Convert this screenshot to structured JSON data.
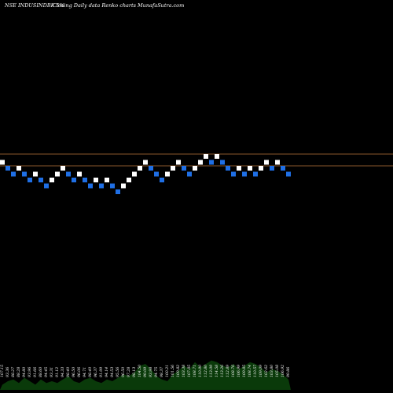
{
  "header": {
    "title": "NSE INDUSINDBK 5%",
    "subtitle": "Closing Daily data Renko charts MunafaSutra.com"
  },
  "chart_data": {
    "type": "renko",
    "brick_size_pct": 5,
    "colors": {
      "up": "#ffffff",
      "down": "#1f6fe5",
      "reference_line": "#b8743a",
      "volume": "#0a3a0a",
      "background": "#000000"
    },
    "reference_lines": [
      1,
      3
    ],
    "bricks": [
      {
        "level": 1,
        "dir": "up"
      },
      {
        "level": 0,
        "dir": "down"
      },
      {
        "level": -1,
        "dir": "down"
      },
      {
        "level": 0,
        "dir": "up"
      },
      {
        "level": -1,
        "dir": "down"
      },
      {
        "level": -2,
        "dir": "down"
      },
      {
        "level": -1,
        "dir": "up"
      },
      {
        "level": -2,
        "dir": "down"
      },
      {
        "level": -3,
        "dir": "down"
      },
      {
        "level": -2,
        "dir": "up"
      },
      {
        "level": -1,
        "dir": "up"
      },
      {
        "level": 0,
        "dir": "up"
      },
      {
        "level": -1,
        "dir": "down"
      },
      {
        "level": -2,
        "dir": "down"
      },
      {
        "level": -1,
        "dir": "up"
      },
      {
        "level": -2,
        "dir": "down"
      },
      {
        "level": -3,
        "dir": "down"
      },
      {
        "level": -2,
        "dir": "up"
      },
      {
        "level": -3,
        "dir": "down"
      },
      {
        "level": -2,
        "dir": "up"
      },
      {
        "level": -3,
        "dir": "down"
      },
      {
        "level": -4,
        "dir": "down"
      },
      {
        "level": -3,
        "dir": "up"
      },
      {
        "level": -2,
        "dir": "up"
      },
      {
        "level": -1,
        "dir": "up"
      },
      {
        "level": 0,
        "dir": "up"
      },
      {
        "level": 1,
        "dir": "up"
      },
      {
        "level": 0,
        "dir": "down"
      },
      {
        "level": -1,
        "dir": "down"
      },
      {
        "level": -2,
        "dir": "down"
      },
      {
        "level": -1,
        "dir": "up"
      },
      {
        "level": 0,
        "dir": "up"
      },
      {
        "level": 1,
        "dir": "up"
      },
      {
        "level": 0,
        "dir": "down"
      },
      {
        "level": -1,
        "dir": "down"
      },
      {
        "level": 0,
        "dir": "up"
      },
      {
        "level": 1,
        "dir": "up"
      },
      {
        "level": 2,
        "dir": "up"
      },
      {
        "level": 1,
        "dir": "down"
      },
      {
        "level": 2,
        "dir": "up"
      },
      {
        "level": 1,
        "dir": "down"
      },
      {
        "level": 0,
        "dir": "down"
      },
      {
        "level": -1,
        "dir": "down"
      },
      {
        "level": 0,
        "dir": "up"
      },
      {
        "level": -1,
        "dir": "down"
      },
      {
        "level": 0,
        "dir": "up"
      },
      {
        "level": -1,
        "dir": "down"
      },
      {
        "level": 0,
        "dir": "up"
      },
      {
        "level": 1,
        "dir": "up"
      },
      {
        "level": 0,
        "dir": "down"
      },
      {
        "level": 1,
        "dir": "up"
      },
      {
        "level": 0,
        "dir": "down"
      },
      {
        "level": -1,
        "dir": "down"
      }
    ],
    "x_labels": [
      "107.15",
      "93.36",
      "88.27",
      "88.28",
      "94.80",
      "93.96",
      "91.66",
      "88.60",
      "94.45",
      "93.31",
      "91.12",
      "94.33",
      "98.40",
      "96.50",
      "96.06",
      "94.71",
      "98.40",
      "96.37",
      "91.99",
      "94.14",
      "94.53",
      "95.56",
      "96.50",
      "97.28",
      "98.13",
      "104.50",
      "99.09",
      "93.98",
      "94.75",
      "98.37",
      "100.21",
      "101.56",
      "109.82",
      "103.38",
      "107.85",
      "108.71",
      "110.90",
      "112.80",
      "113.09",
      "114.58",
      "113.26",
      "112.89",
      "108.76",
      "106.99",
      "109.85",
      "108.74",
      "110.57",
      "109.09",
      "102.62",
      "103.80",
      "105.08",
      "106.92",
      "99.86"
    ],
    "volume": [
      3,
      5,
      6,
      4,
      7,
      5,
      3,
      6,
      4,
      5,
      4,
      6,
      8,
      5,
      4,
      6,
      7,
      5,
      4,
      6,
      5,
      7,
      9,
      8,
      10,
      14,
      15,
      12,
      8,
      6,
      5,
      9,
      11,
      14,
      12,
      16,
      13,
      15,
      17,
      16,
      14,
      13,
      15,
      12,
      14,
      16,
      15,
      13,
      10,
      12,
      11,
      9,
      6
    ]
  }
}
